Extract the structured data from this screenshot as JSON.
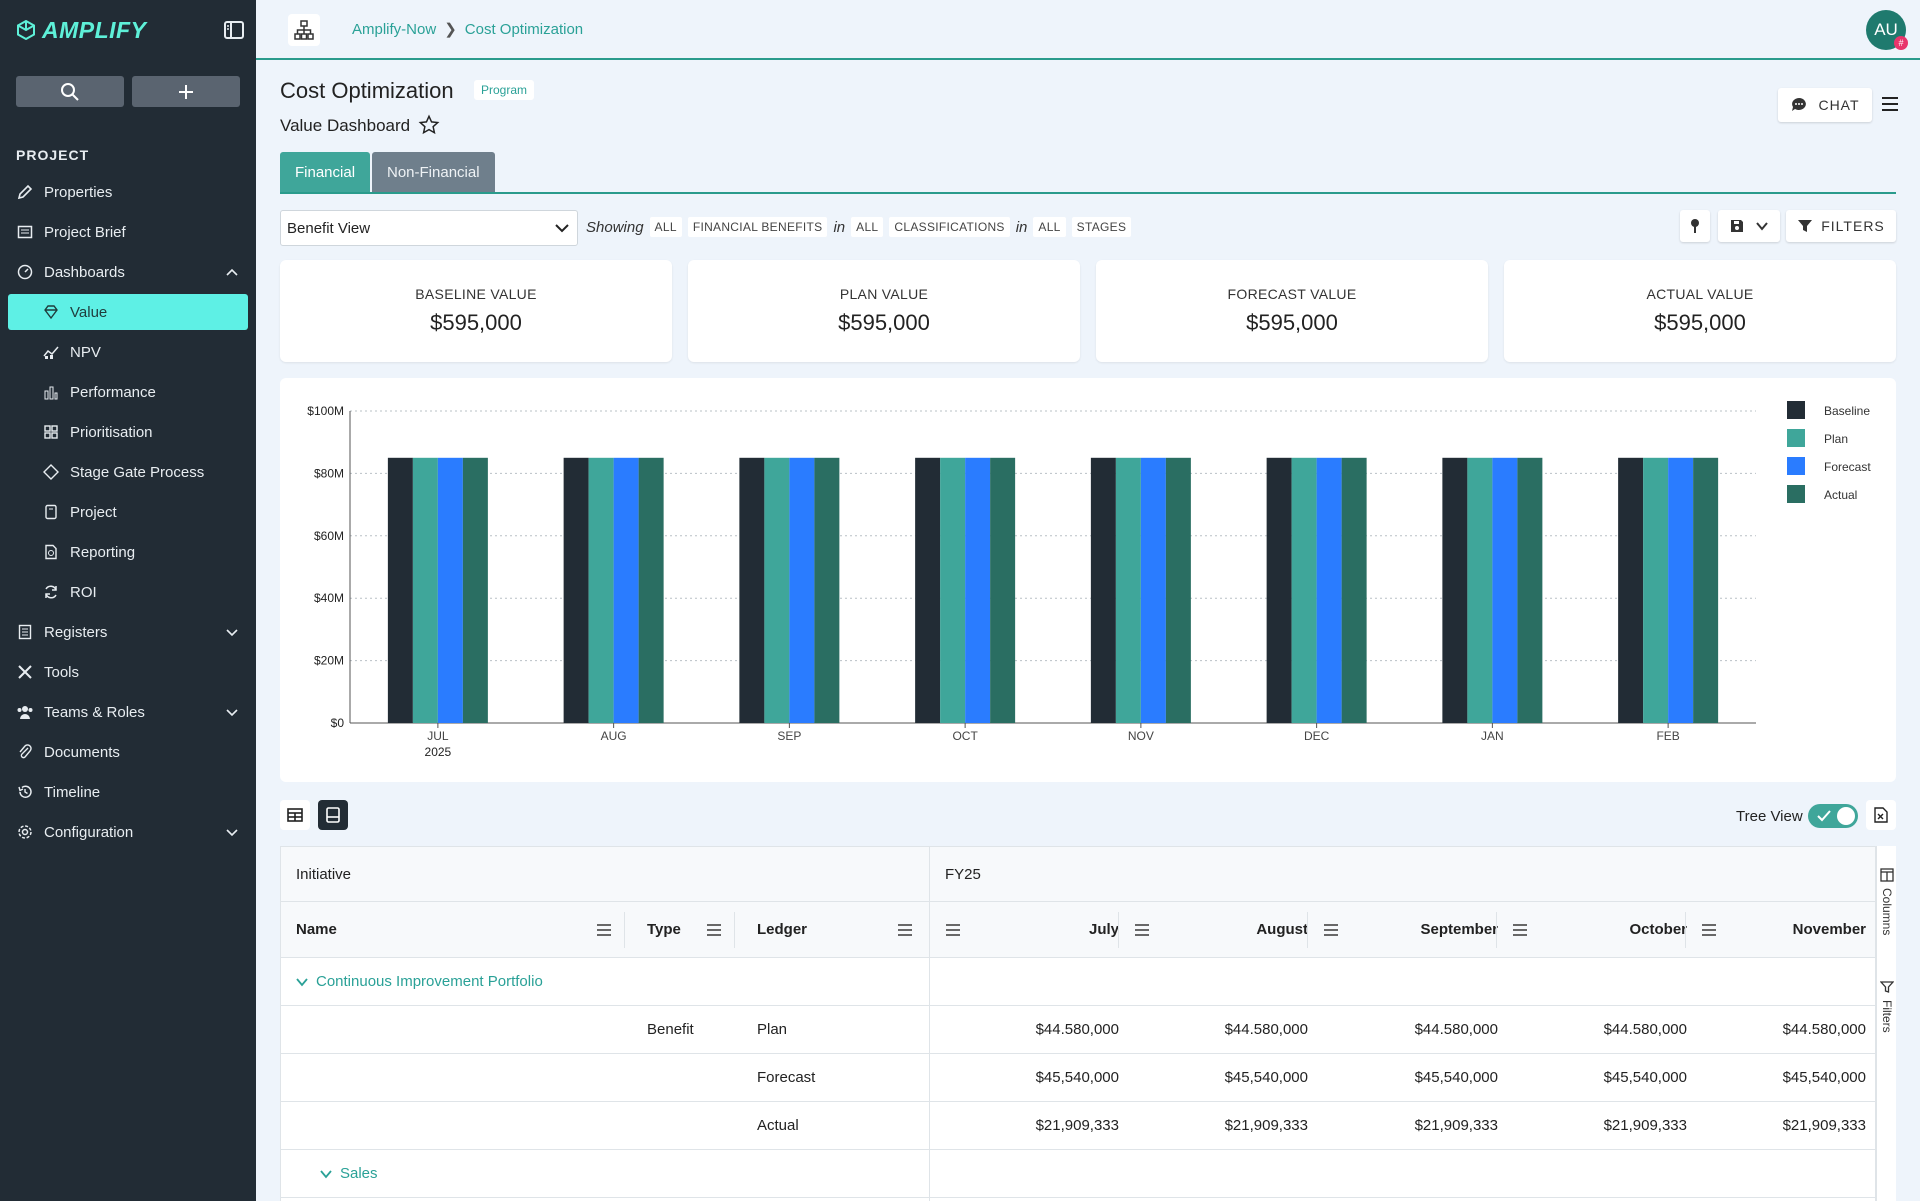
{
  "sidebar": {
    "logo": "AMPLIFY",
    "section": "PROJECT",
    "items": [
      {
        "label": "Properties",
        "icon": "pencil-icon"
      },
      {
        "label": "Project Brief",
        "icon": "brief-icon"
      },
      {
        "label": "Dashboards",
        "icon": "dashboard-icon"
      },
      {
        "label": "Value",
        "icon": "diamond-icon"
      },
      {
        "label": "NPV",
        "icon": "npv-icon"
      },
      {
        "label": "Performance",
        "icon": "bar-chart-icon"
      },
      {
        "label": "Prioritisation",
        "icon": "grid-icon"
      },
      {
        "label": "Stage Gate Process",
        "icon": "diamond-outline-icon"
      },
      {
        "label": "Project",
        "icon": "file-icon"
      },
      {
        "label": "Reporting",
        "icon": "report-icon"
      },
      {
        "label": "ROI",
        "icon": "refresh-icon"
      },
      {
        "label": "Registers",
        "icon": "register-icon"
      },
      {
        "label": "Tools",
        "icon": "tools-icon"
      },
      {
        "label": "Teams & Roles",
        "icon": "teams-icon"
      },
      {
        "label": "Documents",
        "icon": "paperclip-icon"
      },
      {
        "label": "Timeline",
        "icon": "history-icon"
      },
      {
        "label": "Configuration",
        "icon": "gear-icon"
      }
    ]
  },
  "topbar": {
    "crumb1": "Amplify-Now",
    "crumb2": "Cost Optimization",
    "avatar": "AU",
    "avatar_badge": "#"
  },
  "header": {
    "title": "Cost Optimization",
    "badge": "Program",
    "subtitle": "Value Dashboard",
    "chat": "CHAT"
  },
  "tabs": [
    "Financial",
    "Non-Financial"
  ],
  "filterbar": {
    "view": "Benefit View",
    "showing": "Showing",
    "in": "in",
    "chips": [
      "ALL",
      "FINANCIAL BENEFITS",
      "ALL",
      "CLASSIFICATIONS",
      "ALL",
      "STAGES"
    ],
    "filters": "FILTERS"
  },
  "cards": [
    {
      "label": "BASELINE VALUE",
      "value": "$595,000"
    },
    {
      "label": "PLAN VALUE",
      "value": "$595,000"
    },
    {
      "label": "FORECAST VALUE",
      "value": "$595,000"
    },
    {
      "label": "ACTUAL VALUE",
      "value": "$595,000"
    }
  ],
  "chart_data": {
    "type": "bar",
    "categories": [
      "JUL",
      "AUG",
      "SEP",
      "OCT",
      "NOV",
      "DEC",
      "JAN",
      "FEB"
    ],
    "first_category_sublabel": "2025",
    "series": [
      {
        "name": "Baseline",
        "values": [
          85,
          85,
          85,
          85,
          85,
          85,
          85,
          85
        ]
      },
      {
        "name": "Plan",
        "values": [
          85,
          85,
          85,
          85,
          85,
          85,
          85,
          85
        ]
      },
      {
        "name": "Forecast",
        "values": [
          85,
          85,
          85,
          85,
          85,
          85,
          85,
          85
        ]
      },
      {
        "name": "Actual",
        "values": [
          85,
          85,
          85,
          85,
          85,
          85,
          85,
          85
        ]
      }
    ],
    "yticks": [
      "$0",
      "$20M",
      "$40M",
      "$60M",
      "$80M",
      "$100M"
    ],
    "ylim": [
      0,
      100
    ],
    "grid": true,
    "legend": "right",
    "colors": [
      "#222c35",
      "#3fa69a",
      "#2a7cff",
      "#2a6e62"
    ]
  },
  "table_tools": {
    "tree_view": "Tree View"
  },
  "table": {
    "group_left": "Initiative",
    "group_right": "FY25",
    "columns": [
      "Name",
      "Type",
      "Ledger",
      "July",
      "August",
      "September",
      "October",
      "November"
    ],
    "rows": [
      {
        "kind": "group",
        "name": "Continuous Improvement Portfolio"
      },
      {
        "kind": "data",
        "type": "Benefit",
        "ledger": "Plan",
        "values": [
          "$44.580,000",
          "$44.580,000",
          "$44.580,000",
          "$44.580,000",
          "$44.580,000"
        ]
      },
      {
        "kind": "data",
        "type": "",
        "ledger": "Forecast",
        "values": [
          "$45,540,000",
          "$45,540,000",
          "$45,540,000",
          "$45,540,000",
          "$45,540,000"
        ]
      },
      {
        "kind": "data",
        "type": "",
        "ledger": "Actual",
        "values": [
          "$21,909,333",
          "$21,909,333",
          "$21,909,333",
          "$21,909,333",
          "$21,909,333"
        ]
      },
      {
        "kind": "group",
        "name": "Sales"
      }
    ],
    "rail": [
      "Columns",
      "Filters"
    ]
  }
}
